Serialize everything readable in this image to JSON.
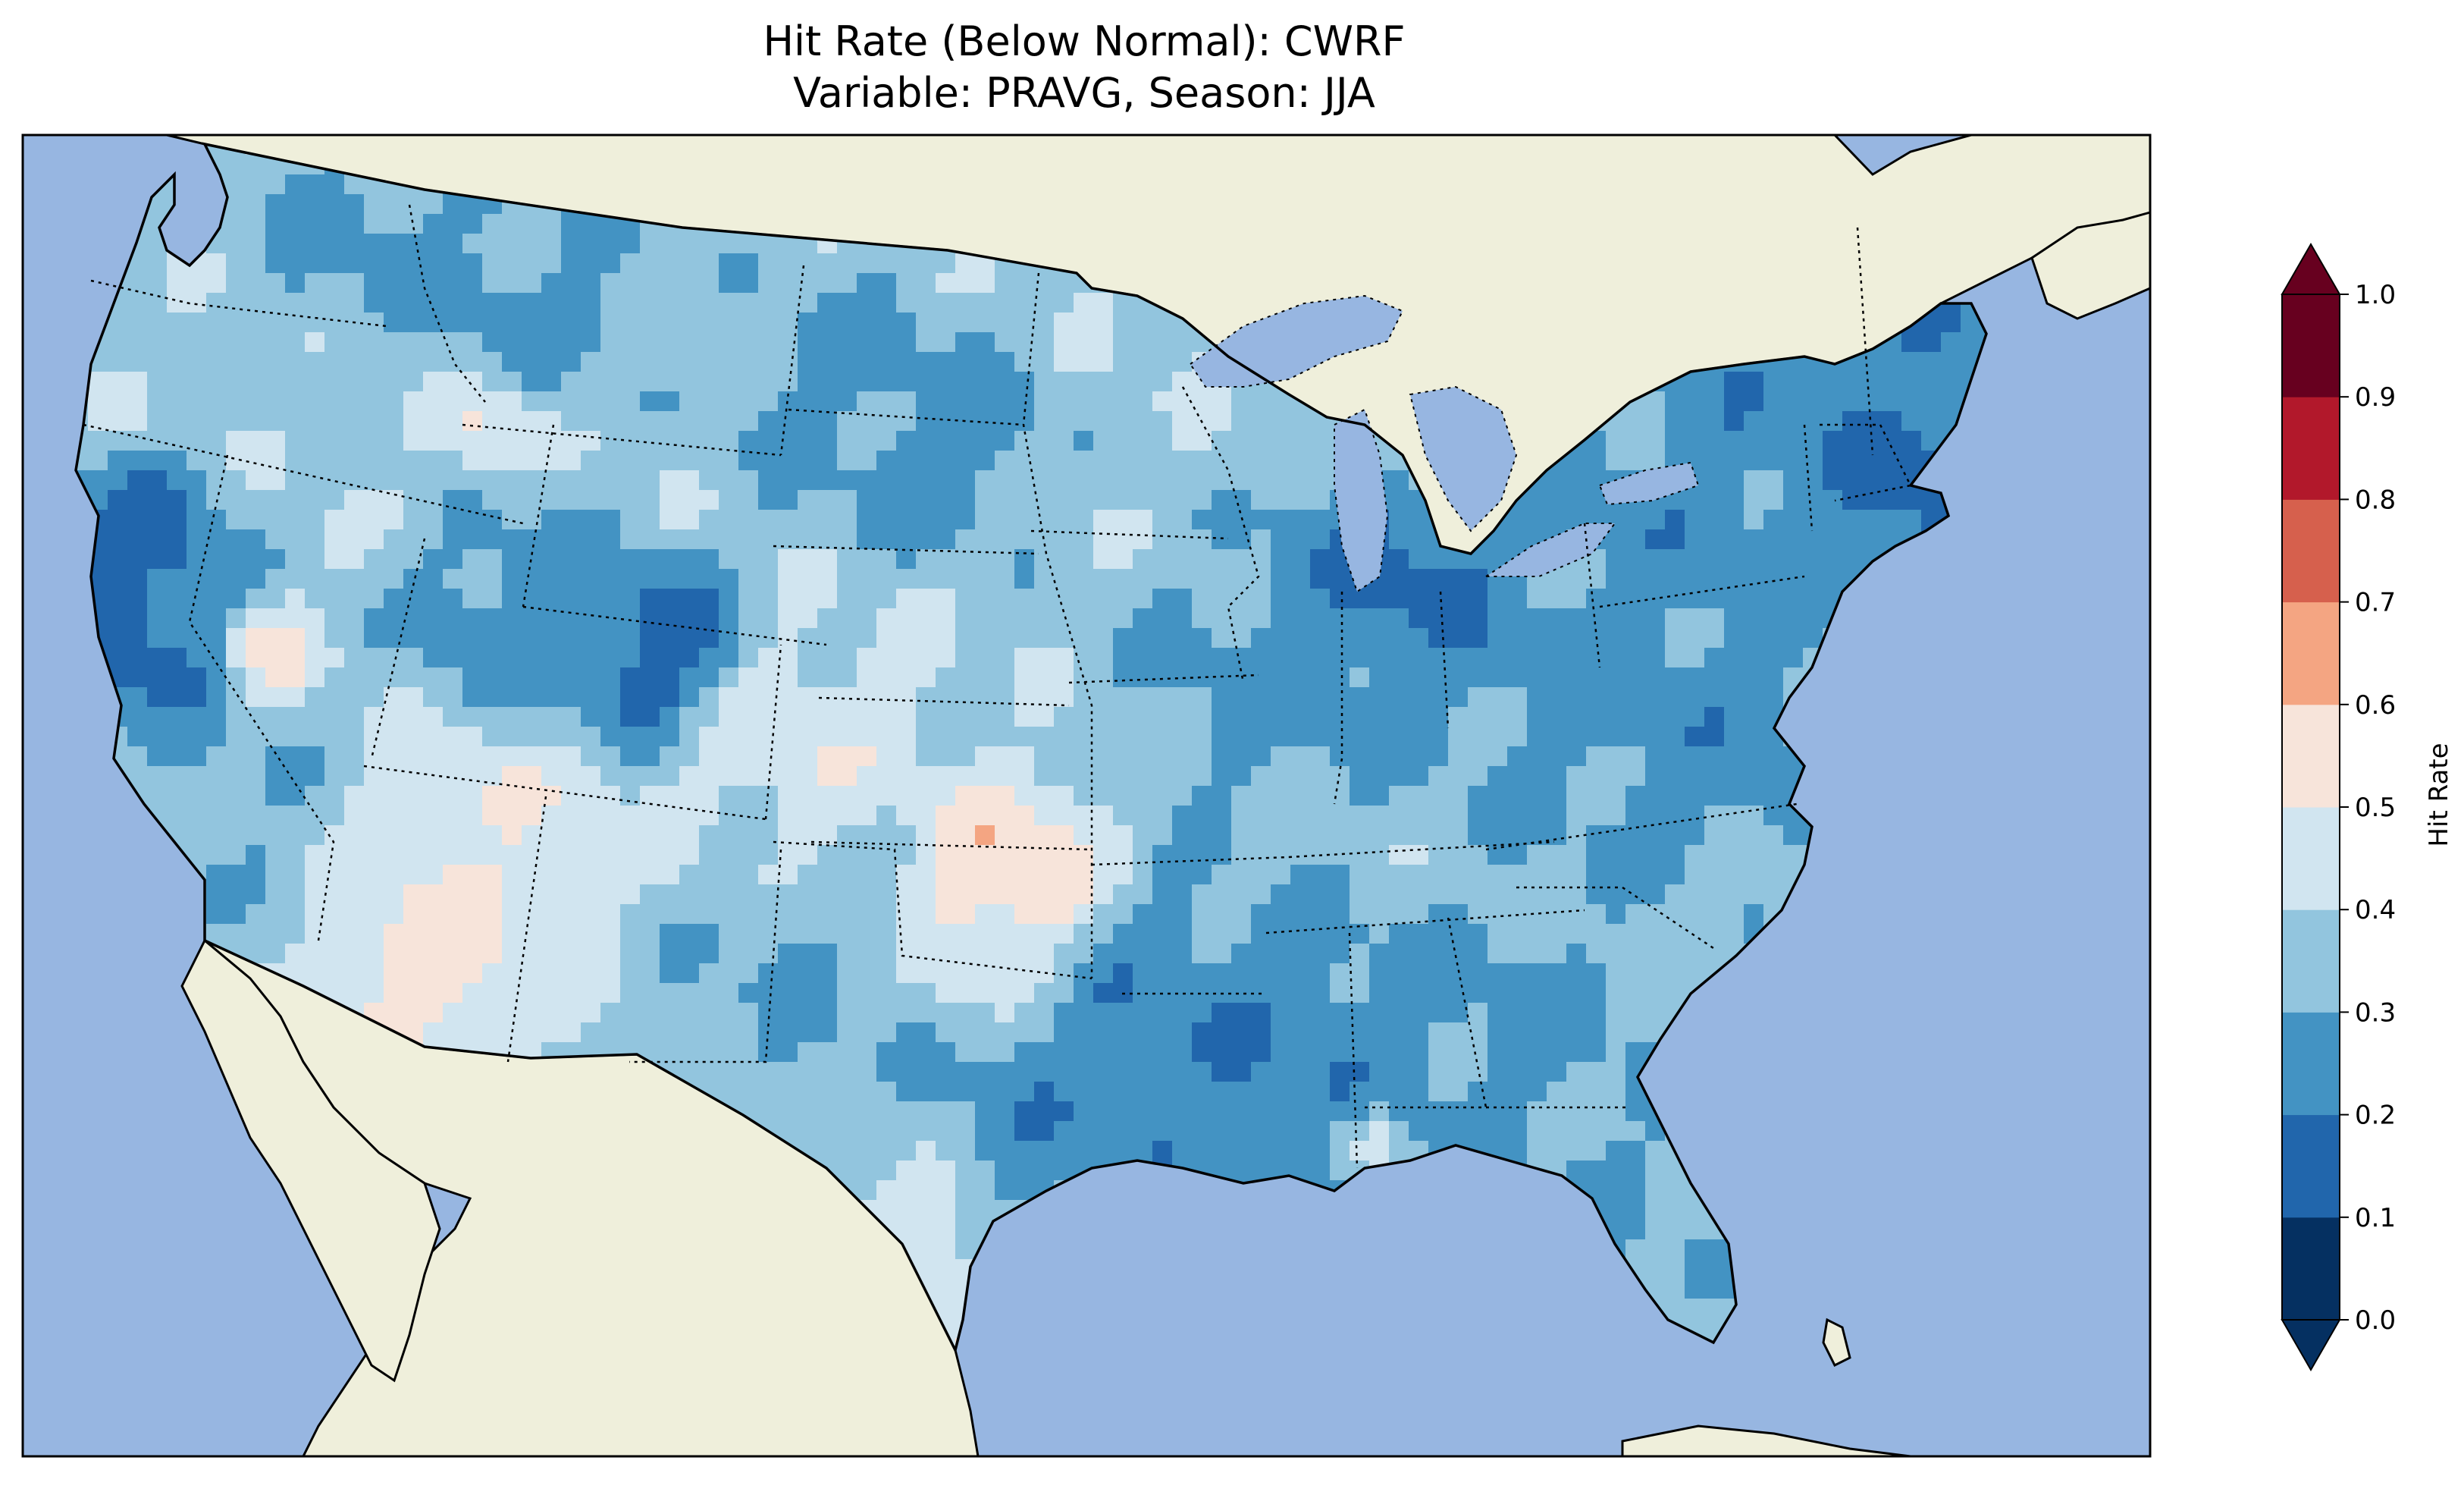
{
  "title": {
    "line1": "Hit Rate (Below Normal): CWRF",
    "line2": "Variable: PRAVG, Season: JJA"
  },
  "colorbar": {
    "label": "Hit Rate",
    "ticks": [
      "0.0",
      "0.1",
      "0.2",
      "0.3",
      "0.4",
      "0.5",
      "0.6",
      "0.7",
      "0.8",
      "0.9",
      "1.0"
    ],
    "colors": [
      "#053061",
      "#2166ac",
      "#4393c3",
      "#92c5de",
      "#d1e5f0",
      "#f7e4da",
      "#f4a582",
      "#d6604d",
      "#b2182b",
      "#67001f"
    ],
    "extend": "both"
  },
  "map_colors": {
    "ocean": "#97b6e1",
    "land": "#efefdb"
  },
  "chart_data": {
    "type": "heatmap",
    "title": "Hit Rate (Below Normal): CWRF / Variable: PRAVG, Season: JJA",
    "colorbar_label": "Hit Rate",
    "vmin": 0.0,
    "vmax": 1.0,
    "levels": [
      0.0,
      0.1,
      0.2,
      0.3,
      0.4,
      0.5,
      0.6,
      0.7,
      0.8,
      0.9,
      1.0
    ],
    "region": "Continental United States",
    "typical_range": [
      0.2,
      0.5
    ],
    "regions_low": [
      "California coast",
      "Northeast",
      "Lower Mississippi Valley",
      "Michigan",
      "Gulf Coast"
    ],
    "regions_high": [
      "Oklahoma",
      "New Mexico / Arizona border",
      "Southern Texas"
    ]
  }
}
